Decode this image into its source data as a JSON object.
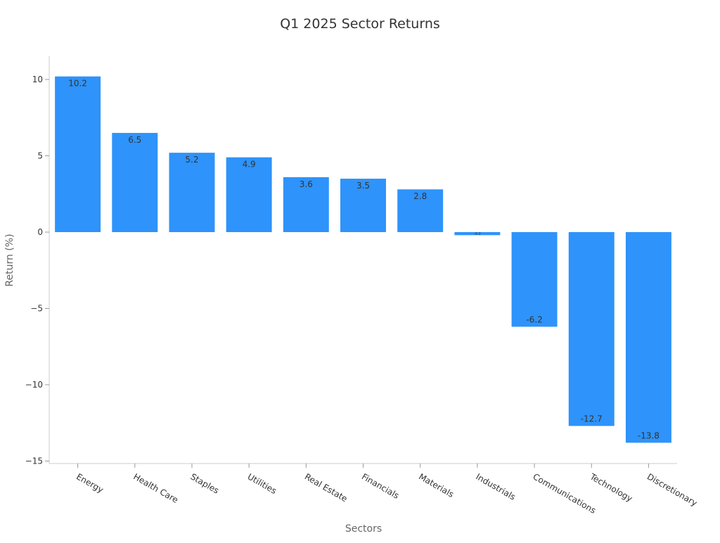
{
  "chart_data": {
    "type": "bar",
    "title": "Q1 2025 Sector Returns",
    "xlabel": "Sectors",
    "ylabel": "Return (%)",
    "categories": [
      "Energy",
      "Health Care",
      "Staples",
      "Utilities",
      "Real Estate",
      "Financials",
      "Materials",
      "Industrials",
      "Communications",
      "Technology",
      "Discretionary"
    ],
    "values": [
      10.2,
      6.5,
      5.2,
      4.9,
      3.6,
      3.5,
      2.8,
      -0.2,
      -6.2,
      -12.7,
      -13.8
    ],
    "data_labels": [
      "10.2",
      "6.5",
      "5.2",
      "4.9",
      "3.6",
      "3.5",
      "2.8",
      "-0.2",
      "-6.2",
      "-12.7",
      "-13.8"
    ],
    "ylim": [
      -15.2,
      11.5
    ],
    "yticks": [
      10,
      5,
      0,
      -5,
      -10,
      -15
    ],
    "ytick_labels": [
      "10",
      "5",
      "0",
      "−5",
      "−10",
      "−15"
    ],
    "grid": false,
    "legend": null,
    "bar_color": "#2e93fa"
  }
}
